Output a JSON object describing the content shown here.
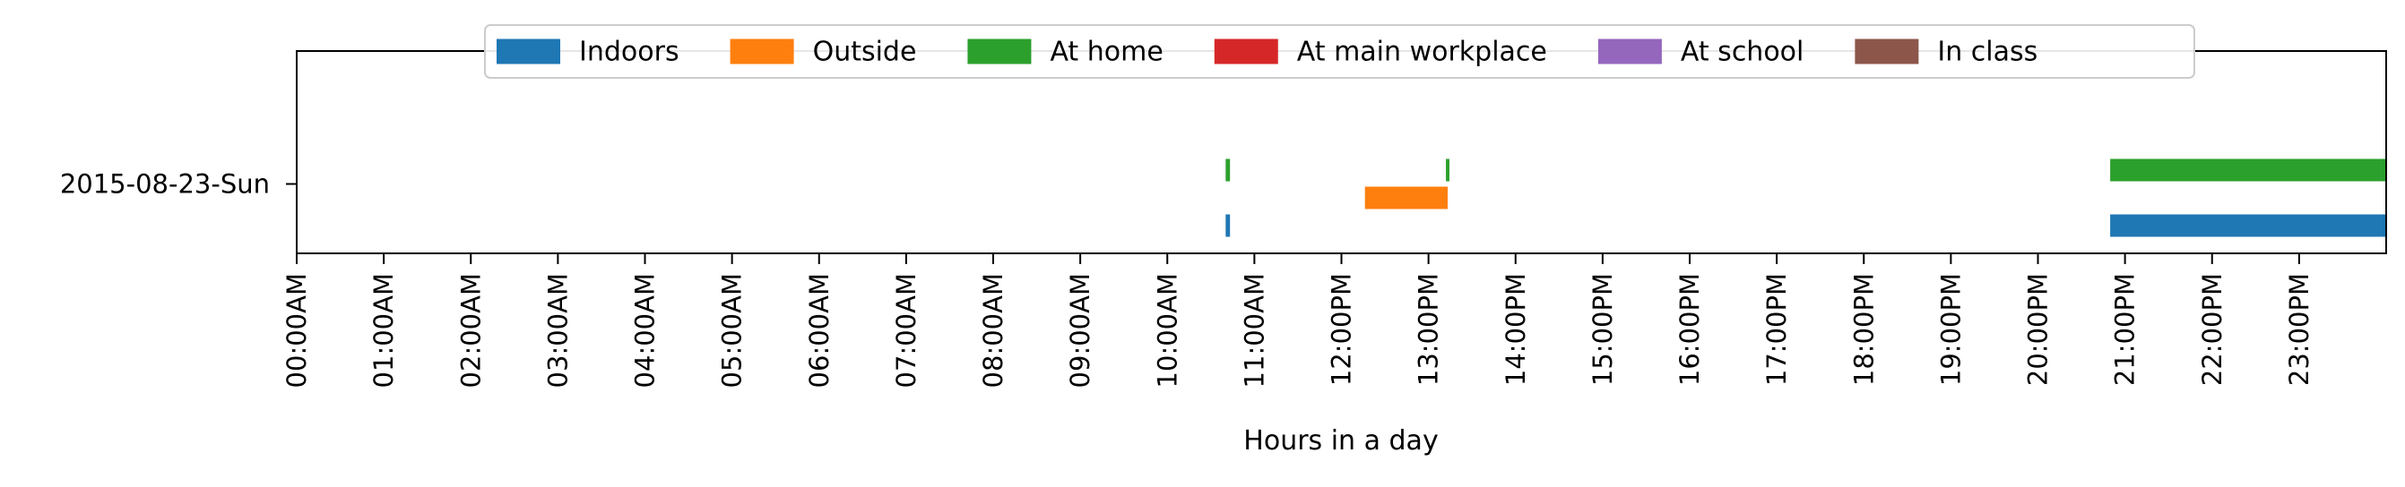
{
  "chart_data": {
    "type": "timeline",
    "xlabel": "Hours in a day",
    "xlim": [
      0,
      24
    ],
    "x_ticks": [
      0,
      1,
      2,
      3,
      4,
      5,
      6,
      7,
      8,
      9,
      10,
      11,
      12,
      13,
      14,
      15,
      16,
      17,
      18,
      19,
      20,
      21,
      22,
      23
    ],
    "x_tick_labels": [
      "00:00AM",
      "01:00AM",
      "02:00AM",
      "03:00AM",
      "04:00AM",
      "05:00AM",
      "06:00AM",
      "07:00AM",
      "08:00AM",
      "09:00AM",
      "10:00AM",
      "11:00AM",
      "12:00PM",
      "13:00PM",
      "14:00PM",
      "15:00PM",
      "16:00PM",
      "17:00PM",
      "18:00PM",
      "19:00PM",
      "20:00PM",
      "21:00PM",
      "22:00PM",
      "23:00PM"
    ],
    "rows": [
      "2015-08-23-Sun"
    ],
    "legend_position": "top-center",
    "grid": false,
    "series": [
      {
        "name": "Indoors",
        "color": "#1f77b4",
        "lane": -1,
        "intervals": [
          [
            10.67,
            10.72
          ],
          [
            20.83,
            24.0
          ]
        ]
      },
      {
        "name": "Outside",
        "color": "#ff7f0e",
        "lane": 0,
        "intervals": [
          [
            12.27,
            13.22
          ]
        ]
      },
      {
        "name": "At home",
        "color": "#2ca02c",
        "lane": 1,
        "intervals": [
          [
            10.67,
            10.72
          ],
          [
            13.2,
            13.24
          ],
          [
            20.83,
            24.0
          ]
        ]
      },
      {
        "name": "At main workplace",
        "color": "#d62728",
        "lane": 2,
        "intervals": []
      },
      {
        "name": "At school",
        "color": "#9467bd",
        "lane": 3,
        "intervals": []
      },
      {
        "name": "In class",
        "color": "#8c564b",
        "lane": 4,
        "intervals": []
      }
    ]
  }
}
